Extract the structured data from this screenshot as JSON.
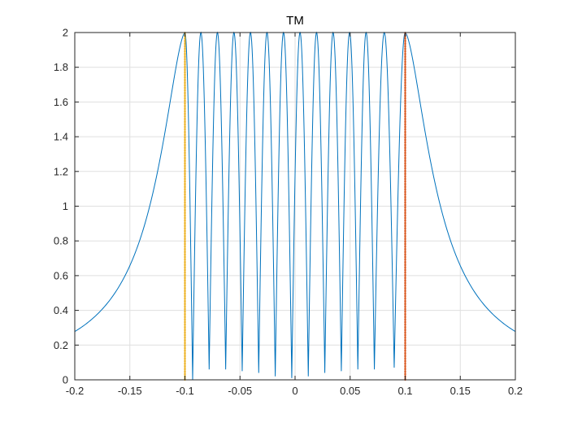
{
  "chart_data": {
    "type": "line",
    "title": "TM",
    "xlabel": "",
    "ylabel": "",
    "xlim": [
      -0.2,
      0.2
    ],
    "ylim": [
      0,
      2
    ],
    "grid": true,
    "xticks": [
      -0.2,
      -0.15,
      -0.1,
      -0.05,
      0,
      0.05,
      0.1,
      0.15,
      0.2
    ],
    "xtick_labels": [
      "-0.2",
      "-0.15",
      "-0.1",
      "-0.05",
      "0",
      "0.05",
      "0.1",
      "0.15",
      "0.2"
    ],
    "yticks": [
      0,
      0.2,
      0.4,
      0.6,
      0.8,
      1,
      1.2,
      1.4,
      1.6,
      1.8,
      2
    ],
    "ytick_labels": [
      "0",
      "0.2",
      "0.4",
      "0.6",
      "0.8",
      "1",
      "1.2",
      "1.4",
      "1.6",
      "1.8",
      "2"
    ],
    "series": [
      {
        "style": "solid",
        "color": "#0072BD",
        "description_points": {
          "left_tail": [
            [
              -0.2,
              0.1
            ],
            [
              -0.15,
              0.45
            ],
            [
              -0.12,
              1.05
            ],
            [
              -0.1,
              2
            ]
          ],
          "oscillation_peaks_x": [
            -0.1,
            -0.085,
            -0.07,
            -0.055,
            -0.04,
            -0.025,
            -0.01,
            0.005,
            0.02,
            0.035,
            0.05,
            0.065,
            0.08,
            0.1
          ],
          "oscillation_minima": [
            [
              -0.093,
              0.0
            ],
            [
              -0.078,
              0.06
            ],
            [
              -0.063,
              0.06
            ],
            [
              -0.048,
              0.05
            ],
            [
              -0.033,
              0.04
            ],
            [
              -0.018,
              0.02
            ],
            [
              -0.003,
              0.01
            ],
            [
              0.012,
              0.02
            ],
            [
              0.027,
              0.04
            ],
            [
              0.042,
              0.05
            ],
            [
              0.057,
              0.06
            ],
            [
              0.072,
              0.06
            ],
            [
              0.09,
              0.07
            ]
          ],
          "right_tail": [
            [
              0.1,
              2
            ],
            [
              0.12,
              1.05
            ],
            [
              0.15,
              0.45
            ],
            [
              0.2,
              0.1
            ]
          ]
        }
      },
      {
        "style": "dotted",
        "color": "#EDB120",
        "x": [
          -0.1,
          -0.1
        ],
        "y": [
          0,
          2
        ]
      },
      {
        "style": "dotted",
        "color": "#D95319",
        "x": [
          0.1,
          0.1
        ],
        "y": [
          0,
          2
        ]
      }
    ]
  }
}
